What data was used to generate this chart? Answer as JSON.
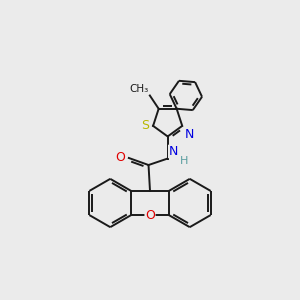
{
  "background_color": "#ebebeb",
  "bond_color": "#1a1a1a",
  "S_color": "#b8b800",
  "N_color": "#0000e0",
  "O_color": "#e00000",
  "H_color": "#5a9ea0",
  "figsize": [
    3.0,
    3.0
  ],
  "dpi": 100,
  "xlim": [
    0,
    10
  ],
  "ylim": [
    0,
    10
  ]
}
